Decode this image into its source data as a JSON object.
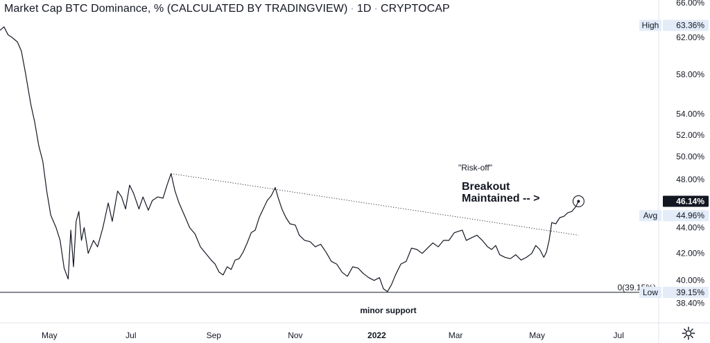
{
  "header": {
    "title": "Market Cap BTC Dominance, % (CALCULATED BY TRADINGVIEW)",
    "interval": "1D",
    "source": "CRYPTOCAP"
  },
  "colors": {
    "line": "#131722",
    "axis_bg": "#ffffff",
    "tag_bg": "#e3ecf8",
    "current_bg": "#131722",
    "support_line": "#131722"
  },
  "icons": {
    "settings": "gear-icon"
  },
  "chart_data": {
    "type": "line",
    "title": "Market Cap BTC Dominance, % (CALCULATED BY TRADINGVIEW)",
    "scale": "log",
    "ylim": [
      37.8,
      66.0
    ],
    "y_tick_labels": [
      "66.00%",
      "62.00%",
      "58.00%",
      "54.00%",
      "52.00%",
      "50.00%",
      "48.00%",
      "44.00%",
      "42.00%",
      "40.00%",
      "38.40%"
    ],
    "y_ticks": [
      66,
      62,
      58,
      54,
      52,
      50,
      48,
      44,
      42,
      40,
      38.4
    ],
    "x_tick_labels": [
      "May",
      "Jul",
      "Sep",
      "Nov",
      "2022",
      "Mar",
      "May",
      "Jul"
    ],
    "x_ticks": [
      "2021-05-01",
      "2021-07-01",
      "2021-09-01",
      "2021-11-01",
      "2022-01-01",
      "2022-03-01",
      "2022-05-01",
      "2022-07-01"
    ],
    "xlim": [
      "2021-03-25",
      "2022-07-31"
    ],
    "series": [
      {
        "points": [
          [
            "2021-03-25",
            62.8
          ],
          [
            "2021-03-28",
            63.2
          ],
          [
            "2021-03-31",
            62.3
          ],
          [
            "2021-04-03",
            62.0
          ],
          [
            "2021-04-07",
            61.5
          ],
          [
            "2021-04-10",
            60.5
          ],
          [
            "2021-04-13",
            58.2
          ],
          [
            "2021-04-17",
            55.0
          ],
          [
            "2021-04-20",
            53.2
          ],
          [
            "2021-04-23",
            51.0
          ],
          [
            "2021-04-26",
            49.6
          ],
          [
            "2021-04-29",
            47.0
          ],
          [
            "2021-05-02",
            45.0
          ],
          [
            "2021-05-06",
            44.0
          ],
          [
            "2021-05-09",
            43.0
          ],
          [
            "2021-05-12",
            40.9
          ],
          [
            "2021-05-15",
            40.1
          ],
          [
            "2021-05-17",
            43.8
          ],
          [
            "2021-05-19",
            41.0
          ],
          [
            "2021-05-21",
            44.5
          ],
          [
            "2021-05-23",
            45.3
          ],
          [
            "2021-05-25",
            43.0
          ],
          [
            "2021-05-27",
            44.0
          ],
          [
            "2021-05-30",
            42.0
          ],
          [
            "2021-06-03",
            43.0
          ],
          [
            "2021-06-06",
            42.5
          ],
          [
            "2021-06-10",
            44.0
          ],
          [
            "2021-06-14",
            46.0
          ],
          [
            "2021-06-17",
            44.5
          ],
          [
            "2021-06-21",
            47.0
          ],
          [
            "2021-06-24",
            46.5
          ],
          [
            "2021-06-27",
            45.5
          ],
          [
            "2021-06-30",
            47.5
          ],
          [
            "2021-07-03",
            46.8
          ],
          [
            "2021-07-07",
            45.5
          ],
          [
            "2021-07-10",
            46.5
          ],
          [
            "2021-07-14",
            45.4
          ],
          [
            "2021-07-17",
            46.2
          ],
          [
            "2021-07-21",
            46.5
          ],
          [
            "2021-07-25",
            46.4
          ],
          [
            "2021-07-28",
            47.5
          ],
          [
            "2021-07-31",
            48.5
          ],
          [
            "2021-08-03",
            47.0
          ],
          [
            "2021-08-06",
            46.0
          ],
          [
            "2021-08-10",
            45.0
          ],
          [
            "2021-08-14",
            44.0
          ],
          [
            "2021-08-18",
            43.5
          ],
          [
            "2021-08-22",
            42.5
          ],
          [
            "2021-08-26",
            42.0
          ],
          [
            "2021-08-30",
            41.5
          ],
          [
            "2021-09-02",
            41.2
          ],
          [
            "2021-09-05",
            40.6
          ],
          [
            "2021-09-08",
            40.4
          ],
          [
            "2021-09-11",
            41.0
          ],
          [
            "2021-09-14",
            40.8
          ],
          [
            "2021-09-17",
            41.5
          ],
          [
            "2021-09-20",
            41.6
          ],
          [
            "2021-09-23",
            42.1
          ],
          [
            "2021-09-26",
            42.8
          ],
          [
            "2021-09-29",
            43.6
          ],
          [
            "2021-10-02",
            43.8
          ],
          [
            "2021-10-05",
            44.8
          ],
          [
            "2021-10-08",
            45.5
          ],
          [
            "2021-10-11",
            46.2
          ],
          [
            "2021-10-14",
            46.6
          ],
          [
            "2021-10-17",
            47.3
          ],
          [
            "2021-10-19",
            46.5
          ],
          [
            "2021-10-22",
            45.5
          ],
          [
            "2021-10-25",
            44.8
          ],
          [
            "2021-10-28",
            44.3
          ],
          [
            "2021-11-01",
            44.2
          ],
          [
            "2021-11-04",
            43.4
          ],
          [
            "2021-11-08",
            43.0
          ],
          [
            "2021-11-12",
            42.9
          ],
          [
            "2021-11-16",
            42.5
          ],
          [
            "2021-11-20",
            42.7
          ],
          [
            "2021-11-24",
            42.1
          ],
          [
            "2021-11-28",
            41.4
          ],
          [
            "2021-12-02",
            41.2
          ],
          [
            "2021-12-06",
            40.6
          ],
          [
            "2021-12-10",
            40.3
          ],
          [
            "2021-12-14",
            41.0
          ],
          [
            "2021-12-18",
            40.9
          ],
          [
            "2021-12-22",
            40.5
          ],
          [
            "2021-12-26",
            40.2
          ],
          [
            "2021-12-30",
            40.0
          ],
          [
            "2022-01-03",
            40.2
          ],
          [
            "2022-01-06",
            39.4
          ],
          [
            "2022-01-09",
            39.2
          ],
          [
            "2022-01-12",
            39.7
          ],
          [
            "2022-01-15",
            40.4
          ],
          [
            "2022-01-19",
            41.2
          ],
          [
            "2022-01-23",
            41.4
          ],
          [
            "2022-01-27",
            42.4
          ],
          [
            "2022-01-31",
            42.3
          ],
          [
            "2022-02-04",
            42.0
          ],
          [
            "2022-02-08",
            42.4
          ],
          [
            "2022-02-12",
            42.8
          ],
          [
            "2022-02-16",
            42.5
          ],
          [
            "2022-02-20",
            43.0
          ],
          [
            "2022-02-24",
            43.0
          ],
          [
            "2022-02-28",
            43.6
          ],
          [
            "2022-03-03",
            43.7
          ],
          [
            "2022-03-06",
            43.8
          ],
          [
            "2022-03-09",
            43.0
          ],
          [
            "2022-03-13",
            43.2
          ],
          [
            "2022-03-17",
            43.4
          ],
          [
            "2022-03-21",
            43.0
          ],
          [
            "2022-03-25",
            42.5
          ],
          [
            "2022-03-28",
            42.3
          ],
          [
            "2022-03-31",
            42.6
          ],
          [
            "2022-04-03",
            41.9
          ],
          [
            "2022-04-07",
            41.7
          ],
          [
            "2022-04-11",
            41.6
          ],
          [
            "2022-04-15",
            41.9
          ],
          [
            "2022-04-19",
            41.5
          ],
          [
            "2022-04-23",
            41.7
          ],
          [
            "2022-04-27",
            42.0
          ],
          [
            "2022-04-30",
            42.6
          ],
          [
            "2022-05-03",
            42.3
          ],
          [
            "2022-05-06",
            41.7
          ],
          [
            "2022-05-08",
            42.1
          ],
          [
            "2022-05-10",
            43.0
          ],
          [
            "2022-05-12",
            44.4
          ],
          [
            "2022-05-15",
            44.3
          ],
          [
            "2022-05-18",
            44.8
          ],
          [
            "2022-05-21",
            44.9
          ],
          [
            "2022-05-24",
            45.2
          ],
          [
            "2022-05-27",
            45.3
          ],
          [
            "2022-05-30",
            45.7
          ],
          [
            "2022-06-01",
            46.14
          ]
        ]
      }
    ],
    "annotations": {
      "risk_off": "\"Risk-off\"",
      "breakout_line1": "Breakout",
      "breakout_line2": "Maintained -- >",
      "support": "minor support",
      "level_tag": "0(39.15%)"
    },
    "trendline": {
      "from": [
        "2021-07-31",
        48.5
      ],
      "to": [
        "2022-06-01",
        43.4
      ],
      "style": "dotted"
    },
    "support_level": 39.15,
    "price_tags": {
      "high_label": "High",
      "high_value": "63.36%",
      "high": 63.36,
      "current_value": "46.14%",
      "current": 46.14,
      "avg_label": "Avg",
      "avg_value": "44.96%",
      "avg": 44.96,
      "low_label": "Low",
      "low_value": "39.15%",
      "low": 39.15
    },
    "grid": false,
    "legend": "none"
  }
}
